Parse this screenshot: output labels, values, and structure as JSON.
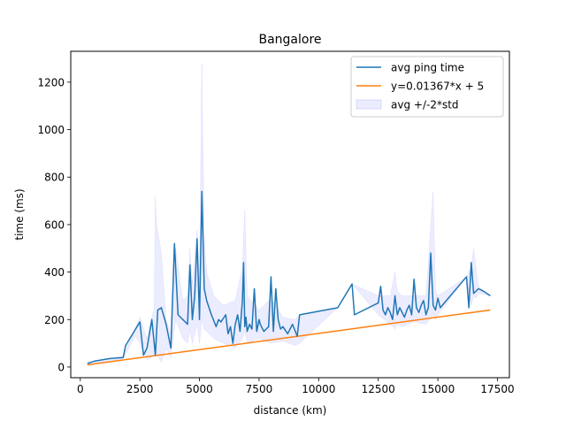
{
  "chart_data": {
    "type": "line",
    "title": "Bangalore",
    "xlabel": "distance (km)",
    "ylabel": "time (ms)",
    "xlim": [
      -400,
      18000
    ],
    "ylim": [
      -45,
      1330
    ],
    "xticks": [
      0,
      2500,
      5000,
      7500,
      10000,
      12500,
      15000,
      17500
    ],
    "yticks": [
      0,
      200,
      400,
      600,
      800,
      1000,
      1200
    ],
    "grid": false,
    "legend_position": "top-right",
    "colors": {
      "avg": "#1f77b4",
      "fit": "#ff7f0e",
      "band": "#7f7fff"
    },
    "series": [
      {
        "name": "avg ping time",
        "kind": "line",
        "x": [
          300,
          600,
          900,
          1200,
          1500,
          1800,
          1900,
          2200,
          2500,
          2650,
          2800,
          3000,
          3150,
          3250,
          3400,
          3600,
          3800,
          3950,
          4100,
          4300,
          4500,
          4600,
          4700,
          4800,
          4900,
          5000,
          5100,
          5200,
          5300,
          5500,
          5700,
          5800,
          5900,
          6100,
          6200,
          6300,
          6400,
          6500,
          6600,
          6700,
          6800,
          6850,
          6900,
          6950,
          7000,
          7100,
          7200,
          7300,
          7400,
          7500,
          7550,
          7700,
          7800,
          7900,
          8000,
          8100,
          8200,
          8300,
          8400,
          8500,
          8700,
          8900,
          9100,
          9200,
          10800,
          11400,
          11500,
          12500,
          12600,
          12700,
          12800,
          12900,
          13000,
          13100,
          13200,
          13300,
          13400,
          13500,
          13600,
          13700,
          13800,
          13900,
          14000,
          14100,
          14200,
          14300,
          14400,
          14500,
          14600,
          14700,
          14800,
          14900,
          15000,
          15100,
          16200,
          16300,
          16400,
          16500,
          16700,
          16900,
          17200
        ],
        "y": [
          15,
          25,
          30,
          35,
          38,
          40,
          90,
          140,
          190,
          50,
          80,
          200,
          50,
          240,
          250,
          180,
          80,
          520,
          220,
          200,
          180,
          430,
          200,
          300,
          540,
          200,
          740,
          330,
          280,
          220,
          170,
          200,
          190,
          220,
          140,
          170,
          100,
          180,
          220,
          150,
          280,
          440,
          170,
          210,
          150,
          180,
          160,
          330,
          150,
          200,
          180,
          150,
          160,
          170,
          380,
          150,
          330,
          200,
          160,
          170,
          140,
          180,
          130,
          220,
          250,
          350,
          220,
          270,
          340,
          240,
          220,
          250,
          230,
          200,
          300,
          220,
          250,
          230,
          210,
          240,
          260,
          220,
          370,
          250,
          230,
          260,
          280,
          220,
          250,
          480,
          260,
          240,
          290,
          250,
          380,
          250,
          440,
          310,
          330,
          320,
          300
        ]
      },
      {
        "name": "y=0.01367*x + 5",
        "kind": "line",
        "x": [
          300,
          17200
        ],
        "y": [
          9.101,
          240.124
        ]
      },
      {
        "name": "avg +/-2*std",
        "kind": "band",
        "x": [
          300,
          1800,
          2300,
          2500,
          2800,
          3100,
          3150,
          3200,
          3400,
          3600,
          3800,
          4000,
          4300,
          4500,
          4600,
          4700,
          4900,
          5000,
          5100,
          5200,
          5300,
          5600,
          6000,
          6500,
          6800,
          6900,
          7000,
          7500,
          8000,
          8500,
          9000,
          9200,
          10800,
          11400,
          12500,
          13000,
          13200,
          13300,
          13500,
          14000,
          14500,
          14800,
          14900,
          15000,
          16200,
          16400,
          16500,
          16600,
          16700,
          17200
        ],
        "upper": [
          20,
          45,
          160,
          210,
          120,
          250,
          720,
          600,
          480,
          200,
          140,
          500,
          280,
          300,
          500,
          350,
          580,
          350,
          1280,
          550,
          400,
          300,
          260,
          280,
          420,
          660,
          300,
          240,
          290,
          210,
          200,
          220,
          250,
          350,
          300,
          300,
          400,
          320,
          300,
          300,
          300,
          740,
          330,
          300,
          380,
          420,
          500,
          420,
          340,
          300
        ],
        "lower": [
          10,
          35,
          130,
          100,
          30,
          50,
          100,
          60,
          20,
          80,
          40,
          200,
          120,
          100,
          160,
          100,
          180,
          100,
          200,
          160,
          150,
          120,
          100,
          80,
          120,
          150,
          100,
          120,
          100,
          110,
          90,
          100,
          250,
          350,
          220,
          180,
          160,
          180,
          170,
          190,
          180,
          220,
          200,
          220,
          380,
          260,
          300,
          290,
          310,
          300
        ]
      }
    ]
  }
}
